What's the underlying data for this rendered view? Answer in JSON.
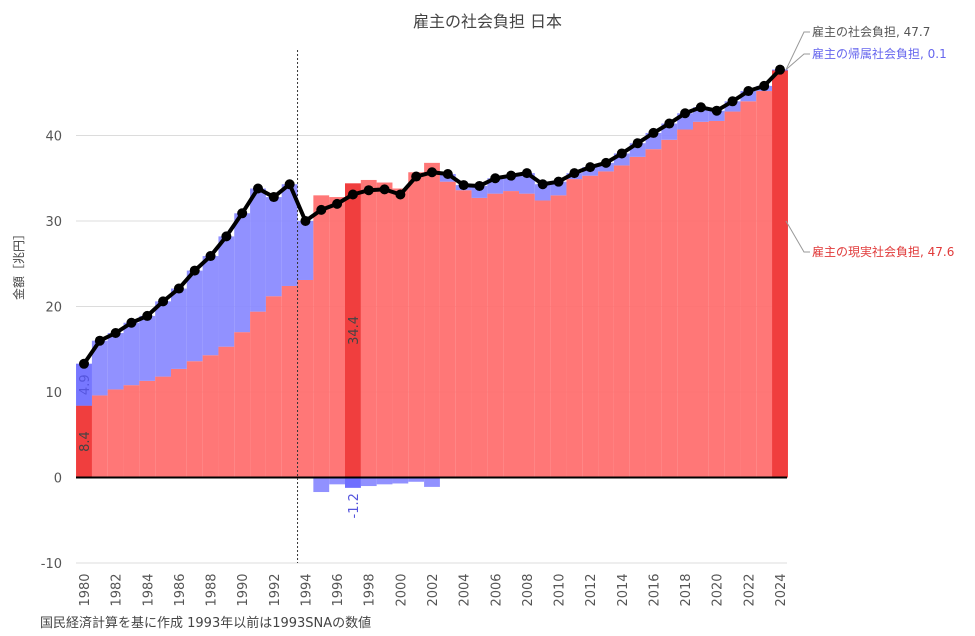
{
  "chart_data": {
    "type": "area",
    "title": "雇主の社会負担 日本",
    "ylabel": "金額［兆円］",
    "note": "国民経済計算を基に作成 1993年以前は1993SNAの数値",
    "ylim": [
      -10,
      50
    ],
    "yticks": [
      -10,
      0,
      10,
      20,
      30,
      40
    ],
    "xlim": [
      1980,
      2024
    ],
    "xticks": [
      1980,
      1982,
      1984,
      1986,
      1988,
      1990,
      1992,
      1994,
      1996,
      1998,
      2000,
      2002,
      2004,
      2006,
      2008,
      2010,
      2012,
      2014,
      2016,
      2018,
      2020,
      2022,
      2024
    ],
    "grid": true,
    "divider_year": 1993.5,
    "years": [
      1980,
      1981,
      1982,
      1983,
      1984,
      1985,
      1986,
      1987,
      1988,
      1989,
      1990,
      1991,
      1992,
      1993,
      1994,
      1995,
      1996,
      1997,
      1998,
      1999,
      2000,
      2001,
      2002,
      2003,
      2004,
      2005,
      2006,
      2007,
      2008,
      2009,
      2010,
      2011,
      2012,
      2013,
      2014,
      2015,
      2016,
      2017,
      2018,
      2019,
      2020,
      2021,
      2022,
      2023,
      2024
    ],
    "series": [
      {
        "name": "雇主の社会負担",
        "color": "#000000",
        "values": [
          13.3,
          16.0,
          16.9,
          18.1,
          18.9,
          20.6,
          22.1,
          24.2,
          25.9,
          28.2,
          30.9,
          33.8,
          32.8,
          34.3,
          30.0,
          31.3,
          32.0,
          33.1,
          33.6,
          33.7,
          33.1,
          35.2,
          35.7,
          35.5,
          34.2,
          34.1,
          35.0,
          35.3,
          35.6,
          34.3,
          34.6,
          35.6,
          36.3,
          36.8,
          37.9,
          39.1,
          40.3,
          41.4,
          42.6,
          43.3,
          42.9,
          44.0,
          45.2,
          45.8,
          47.7
        ]
      },
      {
        "name": "雇主の現実社会負担",
        "color": "#ff6b6b",
        "values": [
          8.4,
          9.6,
          10.3,
          10.8,
          11.3,
          11.8,
          12.7,
          13.6,
          14.3,
          15.3,
          17.0,
          19.4,
          21.2,
          22.4,
          23.1,
          33.0,
          32.8,
          34.4,
          34.8,
          34.5,
          33.8,
          35.7,
          36.8,
          34.6,
          33.6,
          32.7,
          33.2,
          33.5,
          33.2,
          32.4,
          33.0,
          34.9,
          35.3,
          35.8,
          36.5,
          37.5,
          38.4,
          39.5,
          40.7,
          41.6,
          41.7,
          42.8,
          44.0,
          45.2,
          47.6
        ]
      },
      {
        "name": "雇主の帰属社会負担",
        "color": "#8888ff",
        "values": [
          4.9,
          6.4,
          6.6,
          7.3,
          7.6,
          8.8,
          9.4,
          10.6,
          11.6,
          12.9,
          13.9,
          14.4,
          11.6,
          11.9,
          6.9,
          -1.7,
          -0.8,
          -1.2,
          -1.0,
          -0.8,
          -0.7,
          -0.5,
          -1.1,
          0.9,
          0.6,
          1.4,
          1.8,
          1.8,
          2.4,
          1.9,
          1.6,
          0.7,
          1.0,
          1.0,
          1.4,
          1.6,
          1.9,
          1.9,
          1.9,
          1.7,
          1.2,
          1.2,
          1.2,
          0.6,
          0.1
        ]
      }
    ],
    "legend_labels": [
      {
        "text": "雇主の社会負担, 47.7",
        "color": "#555555"
      },
      {
        "text": "雇主の帰属社会負担, 0.1",
        "color": "#6666ee"
      },
      {
        "text": "雇主の現実社会負担, 47.6",
        "color": "#e03a3a"
      }
    ],
    "highlights": [
      {
        "year": 1980,
        "label_actual": "8.4",
        "label_imputed": "4.9"
      },
      {
        "year": 1997,
        "label_actual": "34.4",
        "label_imputed": "-1.2"
      },
      {
        "year": 2024
      }
    ]
  }
}
